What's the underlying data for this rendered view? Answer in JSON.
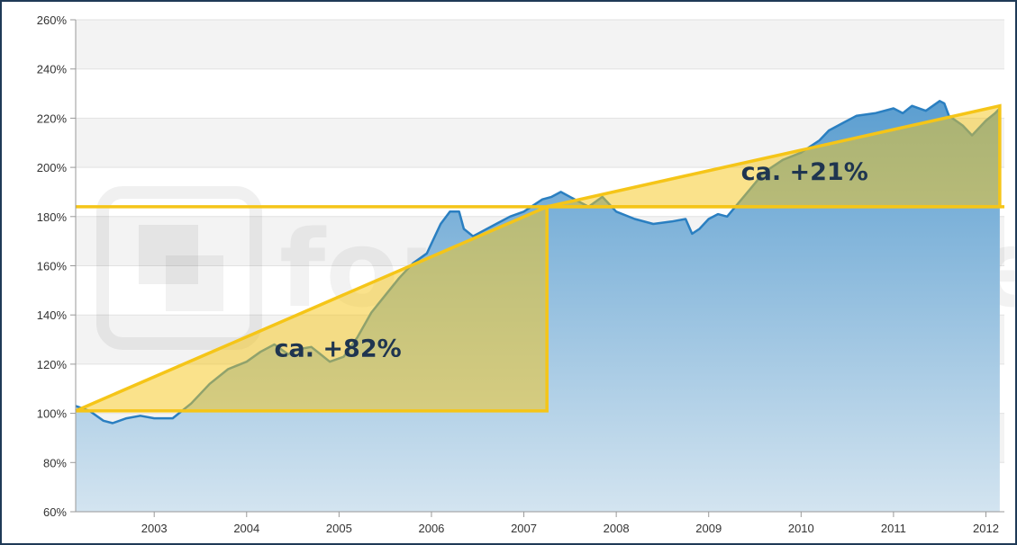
{
  "chart_data": {
    "type": "area",
    "title": "",
    "xlabel": "",
    "ylabel": "",
    "xlim": [
      2002.15,
      2012.2
    ],
    "ylim": [
      60,
      260
    ],
    "y_ticks": [
      {
        "value": 60,
        "label": "60%"
      },
      {
        "value": 80,
        "label": "80%"
      },
      {
        "value": 100,
        "label": "100%"
      },
      {
        "value": 120,
        "label": "120%"
      },
      {
        "value": 140,
        "label": "140%"
      },
      {
        "value": 160,
        "label": "160%"
      },
      {
        "value": 180,
        "label": "180%"
      },
      {
        "value": 200,
        "label": "200%"
      },
      {
        "value": 220,
        "label": "220%"
      },
      {
        "value": 240,
        "label": "240%"
      },
      {
        "value": 260,
        "label": "260%"
      }
    ],
    "x_ticks": [
      {
        "value": 2003,
        "label": "2003"
      },
      {
        "value": 2004,
        "label": "2004"
      },
      {
        "value": 2005,
        "label": "2005"
      },
      {
        "value": 2006,
        "label": "2006"
      },
      {
        "value": 2007,
        "label": "2007"
      },
      {
        "value": 2008,
        "label": "2008"
      },
      {
        "value": 2009,
        "label": "2009"
      },
      {
        "value": 2010,
        "label": "2010"
      },
      {
        "value": 2011,
        "label": "2011"
      },
      {
        "value": 2012,
        "label": "2012"
      }
    ],
    "grid": true,
    "legend": "none",
    "series": [
      {
        "x": [
          2002.15,
          2002.3,
          2002.45,
          2002.55,
          2002.7,
          2002.85,
          2003.0,
          2003.2,
          2003.4,
          2003.6,
          2003.8,
          2004.0,
          2004.15,
          2004.3,
          2004.45,
          2004.55,
          2004.7,
          2004.8,
          2004.9,
          2005.05,
          2005.2,
          2005.35,
          2005.5,
          2005.65,
          2005.8,
          2005.95,
          2006.1,
          2006.2,
          2006.3,
          2006.35,
          2006.45,
          2006.55,
          2006.7,
          2006.85,
          2007.0,
          2007.2,
          2007.3,
          2007.4,
          2007.55,
          2007.7,
          2007.85,
          2008.0,
          2008.2,
          2008.4,
          2008.6,
          2008.75,
          2008.82,
          2008.9,
          2009.0,
          2009.1,
          2009.2,
          2009.4,
          2009.6,
          2009.8,
          2010.0,
          2010.2,
          2010.3,
          2010.45,
          2010.6,
          2010.8,
          2011.0,
          2011.1,
          2011.2,
          2011.35,
          2011.5,
          2011.55,
          2011.6,
          2011.75,
          2011.85,
          2012.0,
          2012.1,
          2012.15
        ],
        "y": [
          103,
          101,
          97,
          96,
          98,
          99,
          98,
          98,
          104,
          112,
          118,
          121,
          125,
          128,
          124,
          126,
          127,
          124,
          121,
          123,
          131,
          141,
          148,
          155,
          161,
          165,
          177,
          182,
          182,
          175,
          172,
          174,
          177,
          180,
          182,
          187,
          188,
          190,
          187,
          184,
          188,
          182,
          179,
          177,
          178,
          179,
          173,
          175,
          179,
          181,
          180,
          189,
          198,
          203,
          206,
          211,
          215,
          218,
          221,
          222,
          224,
          222,
          225,
          223,
          227,
          226,
          221,
          217,
          213,
          219,
          222,
          224
        ],
        "color": "#2a7fc1"
      }
    ],
    "annotations": [
      {
        "text": "ca. +82%",
        "x": 2004.3,
        "y": 123
      },
      {
        "text": "ca. +21%",
        "x": 2009.35,
        "y": 195
      },
      {
        "text": "fondsweb.de",
        "kind": "watermark"
      }
    ],
    "reference_line": {
      "value": 184,
      "color": "#f5c518"
    },
    "triangles": [
      {
        "from": [
          2002.15,
          101
        ],
        "to": [
          2007.25,
          184
        ],
        "label": "ca. +82%"
      },
      {
        "from": [
          2007.25,
          184
        ],
        "to": [
          2012.15,
          225
        ],
        "label": "ca. +21%"
      }
    ],
    "colors": {
      "series_line": "#2a7fc1",
      "area_top": "#5b9ed0",
      "area_bottom": "#cfe2ef",
      "highlight": "#f5c518",
      "highlight_fill": "#f5c518",
      "text_dark": "#1f3550"
    }
  }
}
